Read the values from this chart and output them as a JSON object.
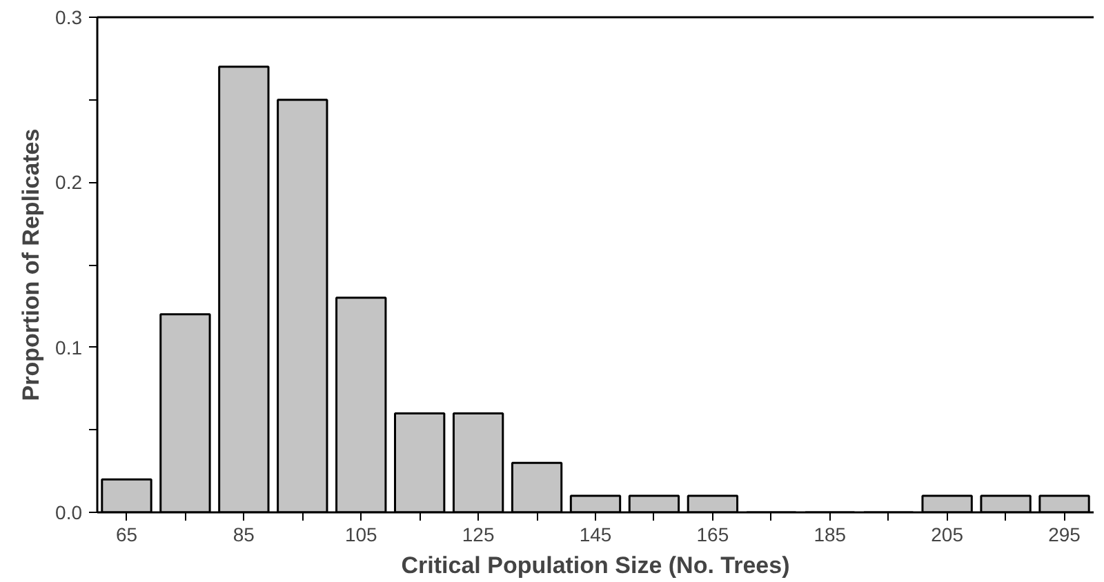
{
  "chart_data": {
    "type": "bar",
    "xlabel": "Critical Population Size (No. Trees)",
    "ylabel": "Proportion of Replicates",
    "categories": [
      "65",
      null,
      "85",
      null,
      "105",
      null,
      "125",
      null,
      "145",
      null,
      "165",
      null,
      "185",
      null,
      "205",
      null,
      "295"
    ],
    "values": [
      0.02,
      0.12,
      0.27,
      0.25,
      0.13,
      0.06,
      0.06,
      0.03,
      0.01,
      0.01,
      0.01,
      0,
      0,
      0,
      0.01,
      0.01,
      0.01
    ],
    "color": "#c4c4c4",
    "ylim": [
      0,
      0.3
    ],
    "yticks": [
      {
        "value": 0,
        "label": "0.0"
      },
      {
        "value": 0.05,
        "label": null
      },
      {
        "value": 0.1,
        "label": "0.1"
      },
      {
        "value": 0.15,
        "label": null
      },
      {
        "value": 0.2,
        "label": "0.2"
      },
      {
        "value": 0.25,
        "label": null
      },
      {
        "value": 0.3,
        "label": "0.3"
      }
    ],
    "grid": false
  }
}
